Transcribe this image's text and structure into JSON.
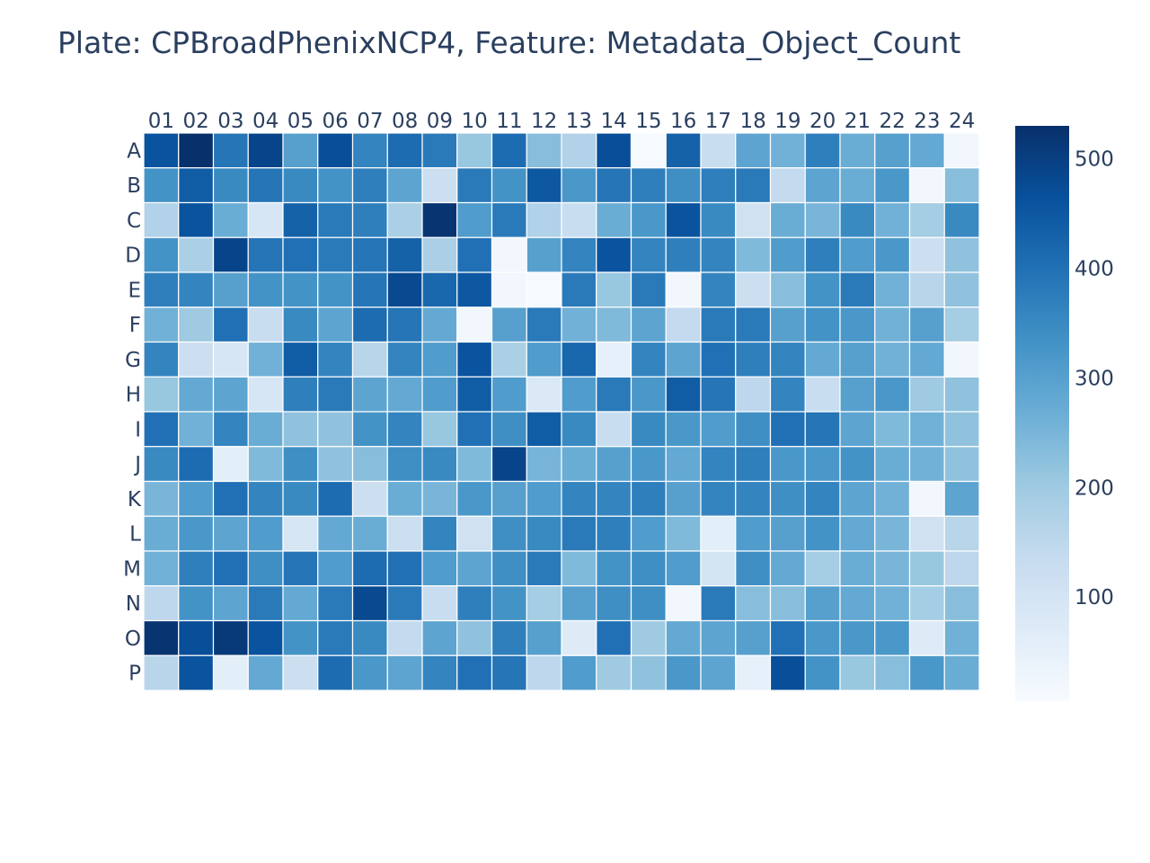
{
  "chart_data": {
    "type": "heatmap",
    "title": "Plate: CPBroadPhenixNCP4, Feature: Metadata_Object_Count",
    "xlabel": "",
    "ylabel": "",
    "x_categories": [
      "01",
      "02",
      "03",
      "04",
      "05",
      "06",
      "07",
      "08",
      "09",
      "10",
      "11",
      "12",
      "13",
      "14",
      "15",
      "16",
      "17",
      "18",
      "19",
      "20",
      "21",
      "22",
      "23",
      "24"
    ],
    "y_categories": [
      "A",
      "B",
      "C",
      "D",
      "E",
      "F",
      "G",
      "H",
      "I",
      "J",
      "K",
      "L",
      "M",
      "N",
      "O",
      "P"
    ],
    "z": [
      [
        460,
        530,
        390,
        490,
        300,
        470,
        360,
        410,
        380,
        210,
        410,
        230,
        170,
        470,
        10,
        430,
        130,
        290,
        260,
        370,
        270,
        300,
        280,
        20
      ],
      [
        330,
        440,
        350,
        390,
        350,
        330,
        370,
        290,
        120,
        380,
        330,
        450,
        320,
        390,
        370,
        340,
        370,
        380,
        140,
        290,
        270,
        320,
        20,
        230
      ],
      [
        170,
        460,
        270,
        90,
        430,
        380,
        370,
        180,
        520,
        310,
        380,
        170,
        130,
        270,
        320,
        460,
        350,
        110,
        270,
        250,
        350,
        260,
        190,
        350
      ],
      [
        330,
        180,
        490,
        390,
        400,
        380,
        390,
        430,
        180,
        400,
        20,
        300,
        360,
        460,
        360,
        370,
        360,
        240,
        310,
        370,
        310,
        320,
        120,
        220
      ],
      [
        370,
        360,
        300,
        330,
        330,
        330,
        390,
        480,
        420,
        450,
        20,
        10,
        380,
        210,
        380,
        20,
        360,
        120,
        230,
        330,
        380,
        260,
        160,
        220
      ],
      [
        260,
        200,
        400,
        130,
        350,
        290,
        410,
        390,
        280,
        20,
        300,
        380,
        260,
        240,
        290,
        140,
        380,
        380,
        300,
        330,
        320,
        260,
        300,
        190
      ],
      [
        360,
        120,
        90,
        260,
        440,
        360,
        160,
        360,
        310,
        460,
        180,
        310,
        420,
        50,
        360,
        290,
        400,
        370,
        360,
        280,
        300,
        260,
        280,
        20
      ],
      [
        210,
        280,
        290,
        90,
        370,
        380,
        290,
        280,
        310,
        440,
        310,
        80,
        310,
        380,
        320,
        440,
        390,
        150,
        360,
        130,
        300,
        320,
        200,
        220
      ],
      [
        400,
        260,
        360,
        270,
        220,
        220,
        330,
        360,
        210,
        400,
        340,
        440,
        350,
        130,
        350,
        320,
        310,
        340,
        400,
        390,
        290,
        240,
        260,
        220
      ],
      [
        350,
        410,
        60,
        240,
        340,
        220,
        230,
        340,
        350,
        240,
        490,
        250,
        270,
        300,
        320,
        280,
        360,
        370,
        320,
        320,
        330,
        270,
        260,
        220
      ],
      [
        250,
        310,
        400,
        360,
        350,
        410,
        120,
        270,
        250,
        320,
        300,
        310,
        360,
        360,
        370,
        300,
        360,
        360,
        340,
        360,
        290,
        260,
        20,
        290
      ],
      [
        270,
        320,
        290,
        310,
        90,
        280,
        270,
        120,
        360,
        110,
        340,
        350,
        380,
        370,
        310,
        240,
        60,
        310,
        300,
        330,
        280,
        250,
        110,
        160
      ],
      [
        260,
        370,
        400,
        340,
        390,
        310,
        410,
        400,
        310,
        290,
        340,
        380,
        240,
        330,
        340,
        310,
        100,
        340,
        280,
        190,
        270,
        250,
        210,
        150
      ],
      [
        150,
        330,
        290,
        380,
        280,
        380,
        480,
        380,
        130,
        370,
        330,
        190,
        300,
        340,
        340,
        20,
        380,
        230,
        230,
        300,
        280,
        260,
        190,
        230
      ],
      [
        520,
        470,
        510,
        460,
        330,
        380,
        350,
        140,
        290,
        220,
        370,
        300,
        70,
        400,
        200,
        280,
        290,
        300,
        400,
        320,
        320,
        320,
        70,
        260
      ],
      [
        160,
        460,
        60,
        280,
        120,
        410,
        320,
        290,
        360,
        400,
        390,
        150,
        310,
        200,
        220,
        320,
        290,
        50,
        470,
        330,
        210,
        230,
        320,
        270
      ]
    ],
    "zmin": 5,
    "zmax": 530,
    "colorscale": "Blues",
    "colorbar": {
      "ticks": [
        100,
        200,
        300,
        400,
        500
      ],
      "tick_labels": [
        "100",
        "200",
        "300",
        "400",
        "500"
      ]
    },
    "colors": {
      "low": "#f7fbff",
      "high": "#08306b",
      "text": "#2a3f5f",
      "cell_border": "#ffffff"
    }
  }
}
